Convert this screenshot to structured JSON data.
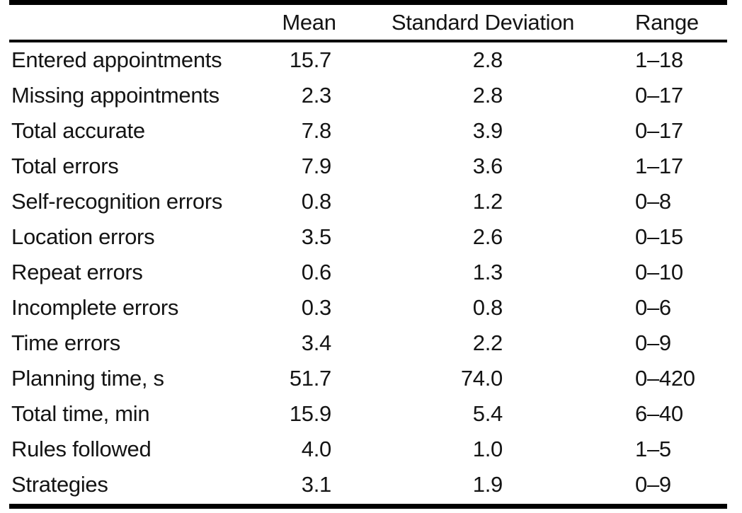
{
  "chart_data": {
    "type": "table",
    "columns": [
      "",
      "Mean",
      "Standard Deviation",
      "Range"
    ],
    "rows": [
      [
        "Entered appointments",
        "15.7",
        "2.8",
        "1–18"
      ],
      [
        "Missing appointments",
        "2.3",
        "2.8",
        "0–17"
      ],
      [
        "Total accurate",
        "7.8",
        "3.9",
        "0–17"
      ],
      [
        "Total errors",
        "7.9",
        "3.6",
        "1–17"
      ],
      [
        "Self-recognition errors",
        "0.8",
        "1.2",
        "0–8"
      ],
      [
        "Location errors",
        "3.5",
        "2.6",
        "0–15"
      ],
      [
        "Repeat errors",
        "0.6",
        "1.3",
        "0–10"
      ],
      [
        "Incomplete errors",
        "0.3",
        "0.8",
        "0–6"
      ],
      [
        "Time errors",
        "3.4",
        "2.2",
        "0–9"
      ],
      [
        "Planning time, s",
        "51.7",
        "74.0",
        "0–420"
      ],
      [
        "Total time, min",
        "15.9",
        "5.4",
        "6–40"
      ],
      [
        "Rules followed",
        "4.0",
        "1.0",
        "1–5"
      ],
      [
        "Strategies",
        "3.1",
        "1.9",
        "0–9"
      ]
    ],
    "layout": {
      "alignments": {
        "label": "left",
        "mean": "right",
        "sd": "right",
        "range": "left"
      },
      "rules": [
        "thick-top",
        "thin-below-header",
        "thick-bottom"
      ]
    }
  },
  "colors": {
    "text": "#141414",
    "rule": "#000000",
    "background": "#ffffff"
  }
}
